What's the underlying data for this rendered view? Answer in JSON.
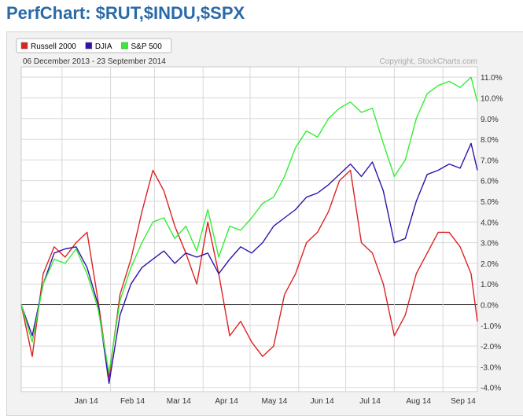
{
  "page": {
    "title": "PerfChart: $RUT,$INDU,$SPX"
  },
  "chart_data": {
    "type": "line",
    "date_range": "06 December 2013 - 23 September 2014",
    "copyright": "Copyright, StockCharts.com",
    "legend_position": "top-left",
    "grid": true,
    "ylim": [
      -4.2,
      11.5
    ],
    "y_ticks": [
      "11.0%",
      "10.0%",
      "9.0%",
      "8.0%",
      "7.0%",
      "6.0%",
      "5.0%",
      "4.0%",
      "3.0%",
      "2.0%",
      "1.0%",
      "0.0%",
      "-1.0%",
      "-2.0%",
      "-3.0%",
      "-4.0%"
    ],
    "x_ticks": [
      "Jan 14",
      "Feb 14",
      "Mar 14",
      "Apr 14",
      "May 14",
      "Jun 14",
      "Jul 14",
      "Aug 14",
      "Sep 14"
    ],
    "categories": [
      "2013-12-06",
      "2013-12-13",
      "2013-12-20",
      "2013-12-27",
      "2014-01-03",
      "2014-01-10",
      "2014-01-17",
      "2014-01-24",
      "2014-01-31",
      "2014-02-07",
      "2014-02-14",
      "2014-02-21",
      "2014-02-28",
      "2014-03-07",
      "2014-03-14",
      "2014-03-21",
      "2014-03-28",
      "2014-04-04",
      "2014-04-11",
      "2014-04-18",
      "2014-04-25",
      "2014-05-02",
      "2014-05-09",
      "2014-05-16",
      "2014-05-23",
      "2014-05-30",
      "2014-06-06",
      "2014-06-13",
      "2014-06-20",
      "2014-06-27",
      "2014-07-04",
      "2014-07-11",
      "2014-07-18",
      "2014-07-25",
      "2014-08-01",
      "2014-08-08",
      "2014-08-15",
      "2014-08-22",
      "2014-08-29",
      "2014-09-05",
      "2014-09-12",
      "2014-09-19",
      "2014-09-23"
    ],
    "series": [
      {
        "name": "Russell 2000",
        "color": "#dd2222",
        "values": [
          0.0,
          -2.5,
          1.5,
          2.8,
          2.3,
          3.0,
          3.5,
          0.2,
          -3.5,
          0.5,
          2.2,
          4.5,
          6.5,
          5.5,
          3.8,
          2.5,
          1.0,
          4.0,
          1.5,
          -1.5,
          -0.8,
          -1.8,
          -2.5,
          -2.0,
          0.5,
          1.5,
          3.0,
          3.5,
          4.5,
          6.0,
          6.5,
          3.0,
          2.5,
          1.0,
          -1.5,
          -0.5,
          1.5,
          2.5,
          3.5,
          3.5,
          2.8,
          1.5,
          -0.8
        ]
      },
      {
        "name": "DJIA",
        "color": "#3311aa",
        "values": [
          0.0,
          -1.5,
          1.0,
          2.5,
          2.7,
          2.8,
          1.8,
          0.0,
          -3.8,
          -0.5,
          1.0,
          1.8,
          2.2,
          2.6,
          2.0,
          2.5,
          2.3,
          2.5,
          1.5,
          2.2,
          2.8,
          2.5,
          3.0,
          3.8,
          4.2,
          4.6,
          5.2,
          5.4,
          5.8,
          6.3,
          6.8,
          6.2,
          6.9,
          5.5,
          3.0,
          3.2,
          5.0,
          6.3,
          6.5,
          6.8,
          6.6,
          7.8,
          6.5
        ]
      },
      {
        "name": "S&P 500",
        "color": "#33ee33",
        "values": [
          0.0,
          -1.8,
          1.0,
          2.2,
          2.0,
          2.7,
          1.5,
          -0.2,
          -3.3,
          0.2,
          1.8,
          3.0,
          4.0,
          4.2,
          3.2,
          3.8,
          2.6,
          4.6,
          2.3,
          3.8,
          3.6,
          4.2,
          4.9,
          5.2,
          6.2,
          7.6,
          8.4,
          8.1,
          9.0,
          9.5,
          9.8,
          9.3,
          9.5,
          7.8,
          6.2,
          7.0,
          9.0,
          10.2,
          10.6,
          10.8,
          10.5,
          11.0,
          9.8
        ]
      }
    ]
  }
}
